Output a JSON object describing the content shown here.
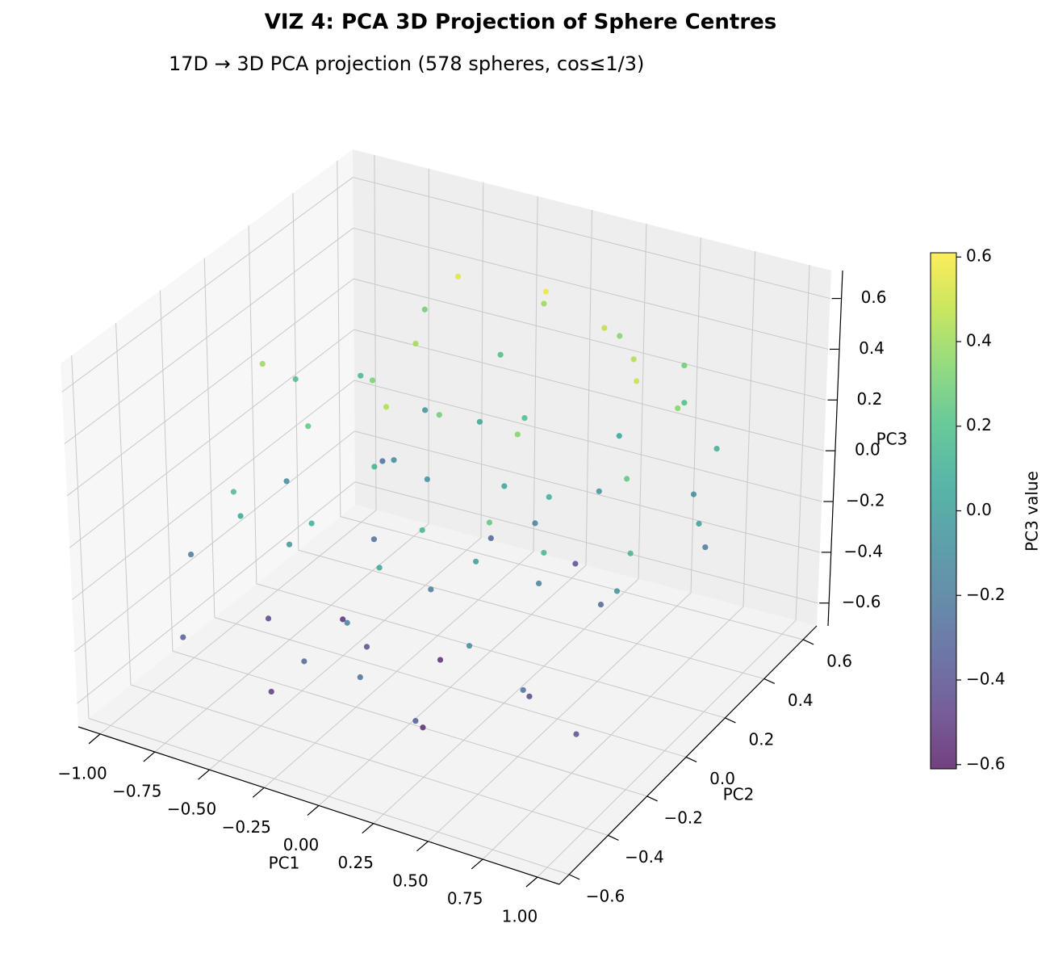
{
  "chart_data": {
    "type": "scatter3d",
    "title": "VIZ 4: PCA 3D Projection of Sphere Centres",
    "subtitle": "17D → 3D PCA projection (578 spheres, cos≤1/3)",
    "xlabel": "PC1",
    "ylabel": "PC2",
    "zlabel": "PC3",
    "colorbar_label": "PC3 value",
    "colormap": [
      "#440154",
      "#482878",
      "#3e4989",
      "#31688e",
      "#26828e",
      "#1f9e89",
      "#35b779",
      "#6ece58",
      "#b5de2b",
      "#fde725"
    ],
    "clim": [
      -0.61,
      0.61
    ],
    "cticks": [
      {
        "value": -0.6,
        "label": "−0.6"
      },
      {
        "value": -0.4,
        "label": "−0.4"
      },
      {
        "value": -0.2,
        "label": "−0.2"
      },
      {
        "value": 0,
        "label": "0.0"
      },
      0.2,
      0.4,
      0.6
    ],
    "xlim": [
      -1.1,
      1.1
    ],
    "ylim": [
      -0.65,
      0.67
    ],
    "zlim": [
      -0.69,
      0.71
    ],
    "xticks": [
      {
        "value": -1,
        "label": "−1.00"
      },
      {
        "value": -0.75,
        "label": "−0.75"
      },
      {
        "value": -0.5,
        "label": "−0.50"
      },
      {
        "value": -0.25,
        "label": "−0.25"
      },
      {
        "value": 0,
        "label": "0.00"
      },
      {
        "value": 0.25,
        "label": "0.25"
      },
      {
        "value": 0.5,
        "label": "0.50"
      },
      {
        "value": 0.75,
        "label": "0.75"
      },
      {
        "value": 1,
        "label": "1.00"
      }
    ],
    "yticks": [
      {
        "value": -0.6,
        "label": "−0.6"
      },
      {
        "value": -0.4,
        "label": "−0.4"
      },
      {
        "value": -0.2,
        "label": "−0.2"
      },
      {
        "value": 0,
        "label": "0.0"
      },
      0.2,
      0.4,
      0.6
    ],
    "zticks": [
      {
        "value": -0.6,
        "label": "−0.6"
      },
      {
        "value": -0.4,
        "label": "−0.4"
      },
      {
        "value": -0.2,
        "label": "−0.2"
      },
      {
        "value": 0,
        "label": "0.0"
      },
      0.2,
      0.4,
      0.6
    ],
    "grid": true,
    "x": [
      -0.62,
      -0.45,
      0.3,
      0.55,
      -0.8,
      0.1,
      0.75,
      -0.2,
      0.4,
      -0.35,
      0.85,
      -0.55,
      0.2,
      -0.1,
      0.6,
      -0.7,
      0.05,
      0.95,
      -0.25,
      0.35,
      -0.9,
      0.5,
      -0.4,
      0.15,
      0.7,
      -0.6,
      0.25,
      -0.15,
      0.45,
      -0.75,
      0.05,
      0.8,
      -0.3,
      0.6,
      -0.5,
      0.3,
      -0.05,
      0.9,
      -0.85,
      0.4,
      -0.2,
      0.65,
      -0.65,
      0.1,
      0.55,
      -0.4,
      0.2,
      -0.1,
      0.75,
      -0.55,
      0.35,
      -0.3,
      0,
      0.5,
      -0.8,
      0.85,
      -0.25,
      0.15,
      -0.45,
      0.65,
      -0.05,
      0.3,
      -0.7,
      0.45,
      -0.15,
      0.95,
      -0.35,
      0.25,
      -0.6,
      0.7,
      0.05,
      -0.5
    ],
    "y": [
      -0.35,
      0.1,
      0.42,
      -0.2,
      0.05,
      0.25,
      0.3,
      -0.5,
      0.05,
      0.4,
      -0.1,
      -0.1,
      -0.35,
      0.55,
      0.5,
      0.3,
      -0.15,
      0.2,
      0.15,
      -0.55,
      -0.3,
      0.35,
      -0.45,
      0.1,
      -0.4,
      0.5,
      0.55,
      -0.25,
      -0.05,
      -0.5,
      0.4,
      0.45,
      -0.05,
      0.1,
      0.25,
      -0.2,
      -0.45,
      -0.35,
      0.15,
      0.3,
      0.35,
      -0.25,
      -0.2,
      -0.55,
      0.55,
      0.05,
      0.2,
      0.05,
      0.05,
      0.45,
      0.45,
      -0.35,
      -0.05,
      -0.45,
      -0.05,
      0.35,
      0.5,
      -0.3,
      -0.3,
      0.2,
      0.25,
      0,
      0.4,
      -0.3,
      -0.15,
      -0.15,
      0.2,
      0.35,
      -0.4,
      0.45,
      -0.4,
      0
    ],
    "z": [
      0.05,
      0.32,
      0.48,
      -0.45,
      -0.12,
      0.2,
      0.35,
      -0.3,
      0.1,
      0.55,
      -0.05,
      0.25,
      -0.55,
      0.4,
      0.2,
      0.15,
      -0.2,
      0.02,
      -0.05,
      -0.35,
      -0.2,
      0.45,
      -0.5,
      0.05,
      -0.25,
      0.3,
      0.35,
      -0.4,
      -0.15,
      -0.35,
      0.58,
      0.1,
      0.12,
      -0.3,
      -0.1,
      0,
      -0.15,
      -0.4,
      0.2,
      -0.05,
      0.05,
      0.15,
      -0.45,
      -0.25,
      0.3,
      -0.25,
      -0.15,
      0.3,
      0.25,
      -0.05,
      0.05,
      0.1,
      -0.55,
      -0.1,
      0.4,
      -0.2,
      0.2,
      0.15,
      -0.05,
      0.5,
      -0.3,
      0.35,
      -0.25,
      0.25,
      0.45,
      0.15,
      0.42,
      -0.4,
      0.18,
      -0.1,
      0.05,
      -0.55
    ]
  }
}
